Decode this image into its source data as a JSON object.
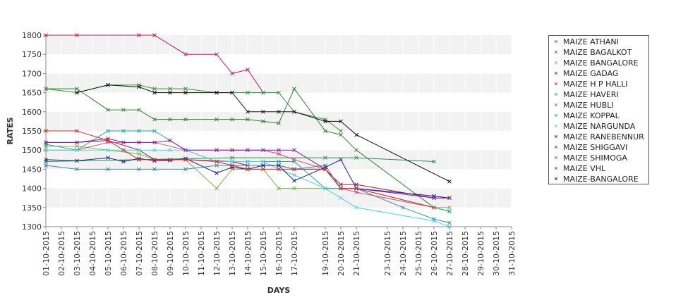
{
  "chart_data": {
    "type": "line",
    "xlabel": "DAYS",
    "ylabel": "RATES",
    "ylim": [
      1300,
      1800
    ],
    "yticks": [
      1300,
      1350,
      1400,
      1450,
      1500,
      1550,
      1600,
      1650,
      1700,
      1750,
      1800
    ],
    "categories": [
      "01-10-2015",
      "02-10-2015",
      "03-10-2015",
      "04-10-2015",
      "05-10-2015",
      "06-10-2015",
      "07-10-2015",
      "08-10-2015",
      "09-10-2015",
      "10-10-2015",
      "11-10-2015",
      "12-10-2015",
      "13-10-2015",
      "14-10-2015",
      "15-10-2015",
      "16-10-2015",
      "17-10-2015",
      "19-10-2015",
      "20-10-2015",
      "21-10-2015",
      "23-10-2015",
      "24-10-2015",
      "25-10-2015",
      "26-10-2015",
      "27-10-2015",
      "28-10-2015",
      "29-10-2015",
      "30-10-2015",
      "31-10-2015"
    ],
    "grid": "horizontal-bands",
    "legend_position": "right",
    "series": [
      {
        "name": "MAIZE ATHANI",
        "color": "#2e8b57",
        "points": [
          [
            "01-10-2015",
            1470
          ],
          [
            "07-10-2015",
            1475
          ],
          [
            "13-10-2015",
            1480
          ],
          [
            "19-10-2015",
            1480
          ],
          [
            "21-10-2015",
            1480
          ],
          [
            "26-10-2015",
            1470
          ]
        ]
      },
      {
        "name": "MAIZE BAGALKOT",
        "color": "#2e7d32",
        "points": [
          [
            "01-10-2015",
            1660
          ],
          [
            "03-10-2015",
            1660
          ],
          [
            "05-10-2015",
            1605
          ],
          [
            "06-10-2015",
            1605
          ],
          [
            "07-10-2015",
            1605
          ],
          [
            "08-10-2015",
            1580
          ],
          [
            "09-10-2015",
            1580
          ],
          [
            "10-10-2015",
            1580
          ],
          [
            "12-10-2015",
            1580
          ],
          [
            "13-10-2015",
            1580
          ],
          [
            "14-10-2015",
            1580
          ],
          [
            "15-10-2015",
            1575
          ],
          [
            "16-10-2015",
            1570
          ],
          [
            "17-10-2015",
            1660
          ],
          [
            "19-10-2015",
            1550
          ],
          [
            "20-10-2015",
            1540
          ],
          [
            "21-10-2015",
            1500
          ],
          [
            "26-10-2015",
            1350
          ],
          [
            "27-10-2015",
            1340
          ]
        ]
      },
      {
        "name": "MAIZE BANGALORE",
        "color": "#7cb342",
        "points": [
          [
            "01-10-2015",
            1510
          ],
          [
            "03-10-2015",
            1510
          ],
          [
            "05-10-2015",
            1500
          ],
          [
            "07-10-2015",
            1490
          ],
          [
            "08-10-2015",
            1475
          ],
          [
            "10-10-2015",
            1475
          ],
          [
            "12-10-2015",
            1400
          ],
          [
            "13-10-2015",
            1450
          ],
          [
            "14-10-2015",
            1450
          ],
          [
            "15-10-2015",
            1450
          ],
          [
            "16-10-2015",
            1400
          ],
          [
            "17-10-2015",
            1400
          ],
          [
            "19-10-2015",
            1400
          ],
          [
            "20-10-2015",
            1400
          ],
          [
            "21-10-2015",
            1400
          ],
          [
            "26-10-2015",
            1350
          ],
          [
            "27-10-2015",
            1350
          ]
        ]
      },
      {
        "name": "MAIZE GADAG",
        "color": "#8b1a4a",
        "points": [
          [
            "01-10-2015",
            1520
          ],
          [
            "03-10-2015",
            1520
          ],
          [
            "05-10-2015",
            1525
          ],
          [
            "07-10-2015",
            1500
          ],
          [
            "08-10-2015",
            1475
          ],
          [
            "10-10-2015",
            1475
          ],
          [
            "13-10-2015",
            1470
          ],
          [
            "14-10-2015",
            1460
          ],
          [
            "15-10-2015",
            1460
          ],
          [
            "16-10-2015",
            1460
          ],
          [
            "17-10-2015",
            1450
          ],
          [
            "19-10-2015",
            1450
          ],
          [
            "20-10-2015",
            1410
          ],
          [
            "21-10-2015",
            1410
          ],
          [
            "26-10-2015",
            1375
          ],
          [
            "27-10-2015",
            1375
          ]
        ]
      },
      {
        "name": "MAIZE H P HALLI",
        "color": "#c2185b",
        "points": [
          [
            "01-10-2015",
            1800
          ],
          [
            "03-10-2015",
            1800
          ],
          [
            "07-10-2015",
            1800
          ],
          [
            "08-10-2015",
            1800
          ],
          [
            "10-10-2015",
            1750
          ],
          [
            "12-10-2015",
            1750
          ],
          [
            "13-10-2015",
            1700
          ],
          [
            "14-10-2015",
            1710
          ],
          [
            "15-10-2015",
            1650
          ]
        ]
      },
      {
        "name": "MAIZE HAVERI",
        "color": "#3d8f9c",
        "points": [
          [
            "01-10-2015",
            1460
          ],
          [
            "03-10-2015",
            1450
          ],
          [
            "05-10-2015",
            1450
          ],
          [
            "07-10-2015",
            1450
          ],
          [
            "08-10-2015",
            1450
          ],
          [
            "10-10-2015",
            1450
          ],
          [
            "12-10-2015",
            1460
          ],
          [
            "13-10-2015",
            1460
          ],
          [
            "14-10-2015",
            1460
          ],
          [
            "15-10-2015",
            1460
          ],
          [
            "16-10-2015",
            1460
          ],
          [
            "17-10-2015",
            1450
          ],
          [
            "19-10-2015",
            1460
          ],
          [
            "20-10-2015",
            1400
          ],
          [
            "21-10-2015",
            1400
          ],
          [
            "24-10-2015",
            1350
          ],
          [
            "26-10-2015",
            1320
          ],
          [
            "27-10-2015",
            1310
          ]
        ]
      },
      {
        "name": "MAIZE HUBLI",
        "color": "#d84a6a",
        "points": [
          [
            "01-10-2015",
            1500
          ],
          [
            "03-10-2015",
            1500
          ],
          [
            "05-10-2015",
            1520
          ],
          [
            "06-10-2015",
            1520
          ],
          [
            "07-10-2015",
            1520
          ],
          [
            "08-10-2015",
            1520
          ],
          [
            "10-10-2015",
            1500
          ],
          [
            "12-10-2015",
            1500
          ],
          [
            "13-10-2015",
            1500
          ],
          [
            "14-10-2015",
            1500
          ],
          [
            "15-10-2015",
            1500
          ],
          [
            "16-10-2015",
            1490
          ],
          [
            "17-10-2015",
            1475
          ],
          [
            "19-10-2015",
            1450
          ],
          [
            "20-10-2015",
            1400
          ],
          [
            "21-10-2015",
            1390
          ],
          [
            "26-10-2015",
            1350
          ]
        ]
      },
      {
        "name": "MAIZE KOPPAL",
        "color": "#26a69a",
        "points": [
          [
            "01-10-2015",
            1515
          ],
          [
            "03-10-2015",
            1500
          ],
          [
            "05-10-2015",
            1550
          ],
          [
            "06-10-2015",
            1550
          ],
          [
            "07-10-2015",
            1550
          ],
          [
            "08-10-2015",
            1550
          ],
          [
            "10-10-2015",
            1500
          ],
          [
            "12-10-2015",
            1470
          ],
          [
            "13-10-2015",
            1470
          ],
          [
            "14-10-2015",
            1470
          ],
          [
            "15-10-2015",
            1470
          ],
          [
            "16-10-2015",
            1470
          ],
          [
            "17-10-2015",
            1470
          ],
          [
            "19-10-2015",
            1400
          ],
          [
            "20-10-2015",
            1400
          ],
          [
            "21-10-2015",
            1400
          ],
          [
            "26-10-2015",
            1350
          ],
          [
            "27-10-2015",
            1340
          ]
        ]
      },
      {
        "name": "MAIZE NARGUNDA",
        "color": "#4dd0e1",
        "points": [
          [
            "01-10-2015",
            1500
          ],
          [
            "03-10-2015",
            1500
          ],
          [
            "05-10-2015",
            1500
          ],
          [
            "06-10-2015",
            1500
          ],
          [
            "07-10-2015",
            1500
          ],
          [
            "08-10-2015",
            1500
          ],
          [
            "09-10-2015",
            1500
          ],
          [
            "10-10-2015",
            1500
          ],
          [
            "12-10-2015",
            1470
          ],
          [
            "13-10-2015",
            1470
          ],
          [
            "14-10-2015",
            1470
          ],
          [
            "15-10-2015",
            1470
          ],
          [
            "16-10-2015",
            1450
          ],
          [
            "17-10-2015",
            1435
          ],
          [
            "19-10-2015",
            1400
          ],
          [
            "20-10-2015",
            1375
          ],
          [
            "21-10-2015",
            1350
          ],
          [
            "26-10-2015",
            1315
          ],
          [
            "27-10-2015",
            1300
          ]
        ]
      },
      {
        "name": "MAIZE RANEBENNUR",
        "color": "#1a237e",
        "points": [
          [
            "01-10-2015",
            1475
          ],
          [
            "03-10-2015",
            1472
          ],
          [
            "05-10-2015",
            1480
          ],
          [
            "06-10-2015",
            1470
          ],
          [
            "07-10-2015",
            1478
          ],
          [
            "08-10-2015",
            1472
          ],
          [
            "09-10-2015",
            1473
          ],
          [
            "10-10-2015",
            1478
          ],
          [
            "12-10-2015",
            1440
          ],
          [
            "13-10-2015",
            1455
          ],
          [
            "14-10-2015",
            1450
          ],
          [
            "15-10-2015",
            1460
          ],
          [
            "16-10-2015",
            1460
          ],
          [
            "17-10-2015",
            1420
          ],
          [
            "19-10-2015",
            1455
          ],
          [
            "20-10-2015",
            1475
          ],
          [
            "21-10-2015",
            1400
          ],
          [
            "26-10-2015",
            1380
          ],
          [
            "27-10-2015",
            1375
          ]
        ]
      },
      {
        "name": "MAIZE SHIGGAVI",
        "color": "#7b1fa2",
        "points": [
          [
            "01-10-2015",
            1520
          ],
          [
            "03-10-2015",
            1520
          ],
          [
            "05-10-2015",
            1530
          ],
          [
            "06-10-2015",
            1520
          ],
          [
            "07-10-2015",
            1520
          ],
          [
            "08-10-2015",
            1520
          ],
          [
            "09-10-2015",
            1525
          ],
          [
            "10-10-2015",
            1500
          ],
          [
            "12-10-2015",
            1500
          ],
          [
            "13-10-2015",
            1500
          ],
          [
            "14-10-2015",
            1500
          ],
          [
            "15-10-2015",
            1500
          ],
          [
            "16-10-2015",
            1500
          ],
          [
            "17-10-2015",
            1500
          ],
          [
            "19-10-2015",
            1450
          ],
          [
            "20-10-2015",
            1400
          ],
          [
            "21-10-2015",
            1400
          ],
          [
            "26-10-2015",
            1375
          ],
          [
            "27-10-2015",
            1375
          ]
        ]
      },
      {
        "name": "MAIZE SHIMOGA",
        "color": "#388e3c",
        "points": [
          [
            "01-10-2015",
            1660
          ],
          [
            "03-10-2015",
            1650
          ],
          [
            "05-10-2015",
            1670
          ],
          [
            "07-10-2015",
            1670
          ],
          [
            "08-10-2015",
            1660
          ],
          [
            "09-10-2015",
            1660
          ],
          [
            "10-10-2015",
            1660
          ],
          [
            "12-10-2015",
            1650
          ],
          [
            "13-10-2015",
            1650
          ],
          [
            "14-10-2015",
            1650
          ],
          [
            "15-10-2015",
            1650
          ],
          [
            "16-10-2015",
            1650
          ],
          [
            "17-10-2015",
            1600
          ],
          [
            "19-10-2015",
            1580
          ],
          [
            "20-10-2015",
            1550
          ]
        ]
      },
      {
        "name": "MAIZE VHL",
        "color": "#d32f2f",
        "points": [
          [
            "01-10-2015",
            1550
          ],
          [
            "03-10-2015",
            1550
          ],
          [
            "05-10-2015",
            1525
          ],
          [
            "06-10-2015",
            1500
          ],
          [
            "07-10-2015",
            1475
          ],
          [
            "08-10-2015",
            1475
          ],
          [
            "09-10-2015",
            1475
          ],
          [
            "10-10-2015",
            1475
          ],
          [
            "12-10-2015",
            1470
          ],
          [
            "13-10-2015",
            1460
          ],
          [
            "14-10-2015",
            1450
          ],
          [
            "15-10-2015",
            1450
          ],
          [
            "16-10-2015",
            1450
          ],
          [
            "17-10-2015",
            1450
          ],
          [
            "19-10-2015",
            1450
          ],
          [
            "20-10-2015",
            1400
          ],
          [
            "21-10-2015",
            1400
          ],
          [
            "26-10-2015",
            1350
          ]
        ]
      },
      {
        "name": "MAIZE-BANGALORE",
        "color": "#111111",
        "points": [
          [
            "03-10-2015",
            1650
          ],
          [
            "05-10-2015",
            1670
          ],
          [
            "07-10-2015",
            1665
          ],
          [
            "08-10-2015",
            1650
          ],
          [
            "09-10-2015",
            1650
          ],
          [
            "10-10-2015",
            1650
          ],
          [
            "12-10-2015",
            1650
          ],
          [
            "13-10-2015",
            1650
          ],
          [
            "14-10-2015",
            1600
          ],
          [
            "15-10-2015",
            1600
          ],
          [
            "16-10-2015",
            1600
          ],
          [
            "17-10-2015",
            1600
          ],
          [
            "19-10-2015",
            1575
          ],
          [
            "20-10-2015",
            1575
          ],
          [
            "21-10-2015",
            1540
          ],
          [
            "27-10-2015",
            1418
          ]
        ]
      }
    ]
  }
}
